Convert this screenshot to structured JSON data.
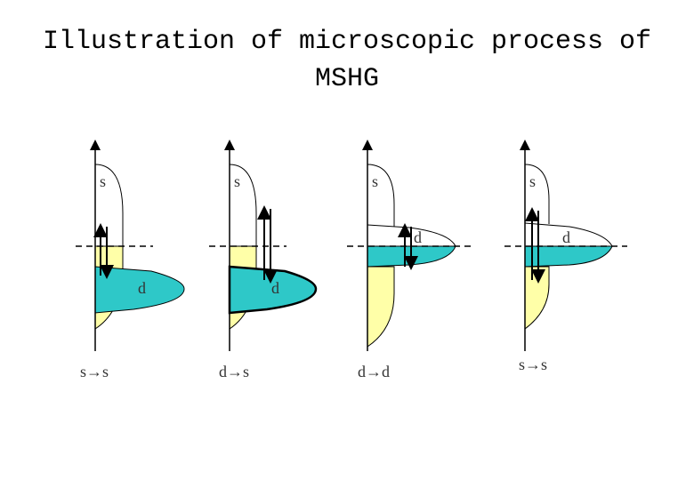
{
  "title": "Illustration of microscopic process of MSHG",
  "panels": [
    {
      "upper_label": "s",
      "lower_label": "d",
      "transition": "s→s"
    },
    {
      "upper_label": "s",
      "lower_label": "d",
      "transition": "d→s"
    },
    {
      "upper_label": "s",
      "lower_label": "d",
      "transition": "d→d"
    },
    {
      "upper_label": "s",
      "lower_label": "d",
      "transition": "s→s"
    }
  ]
}
